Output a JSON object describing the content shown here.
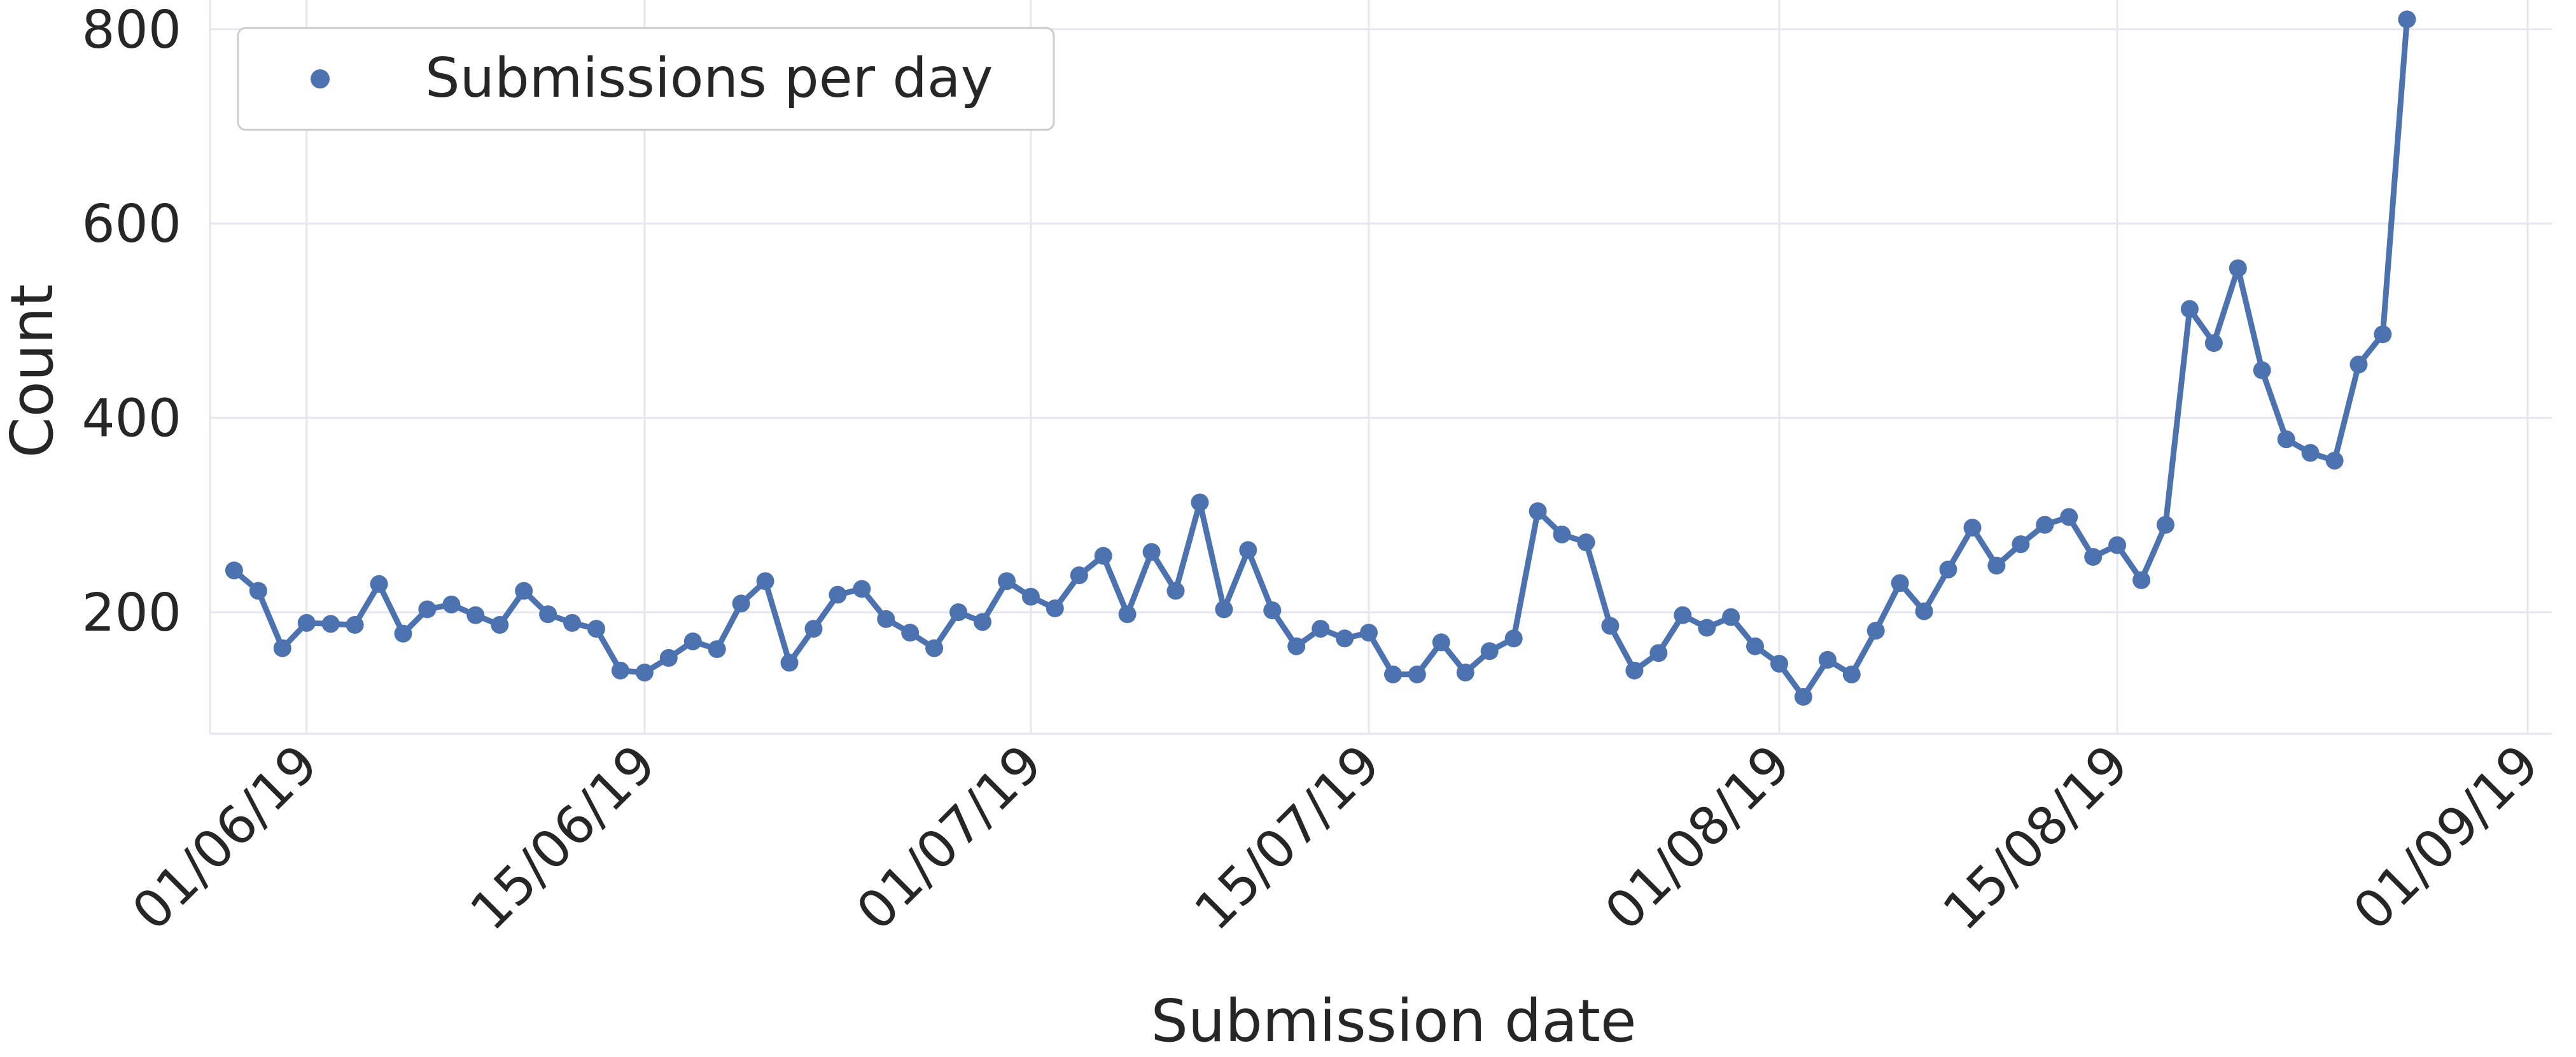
{
  "chart_data": {
    "type": "line",
    "title": "",
    "xlabel": "Submission date",
    "ylabel": "Count",
    "x_start": "2019-05-29",
    "x_step": "1 day",
    "xlim": [
      "2019-05-28",
      "2019-09-02"
    ],
    "ylim": [
      75,
      830
    ],
    "yticks": [
      200,
      400,
      600,
      800
    ],
    "ytick_labels": [
      "200",
      "400",
      "600",
      "800"
    ],
    "xticks": [
      "2019-06-01",
      "2019-06-15",
      "2019-07-01",
      "2019-07-15",
      "2019-08-01",
      "2019-08-15",
      "2019-09-01"
    ],
    "xtick_labels": [
      "01/06/19",
      "15/06/19",
      "01/07/19",
      "15/07/19",
      "01/08/19",
      "15/08/19",
      "01/09/19"
    ],
    "grid": true,
    "legend_position": "top-left",
    "series": [
      {
        "name": "Submissions per day",
        "color": "#4c72b0",
        "values": [
          243,
          222,
          163,
          189,
          188,
          187,
          229,
          178,
          203,
          208,
          197,
          187,
          222,
          198,
          189,
          183,
          140,
          138,
          153,
          170,
          162,
          209,
          232,
          148,
          183,
          218,
          224,
          193,
          179,
          163,
          200,
          190,
          232,
          216,
          204,
          238,
          258,
          198,
          262,
          222,
          313,
          203,
          264,
          202,
          165,
          183,
          173,
          179,
          136,
          136,
          169,
          138,
          160,
          173,
          304,
          280,
          272,
          186,
          140,
          158,
          197,
          184,
          195,
          165,
          147,
          113,
          151,
          136,
          181,
          230,
          201,
          244,
          287,
          248,
          270,
          290,
          298,
          257,
          269,
          233,
          290,
          512,
          477,
          554,
          449,
          378,
          364,
          356,
          455,
          486,
          810
        ]
      }
    ]
  }
}
